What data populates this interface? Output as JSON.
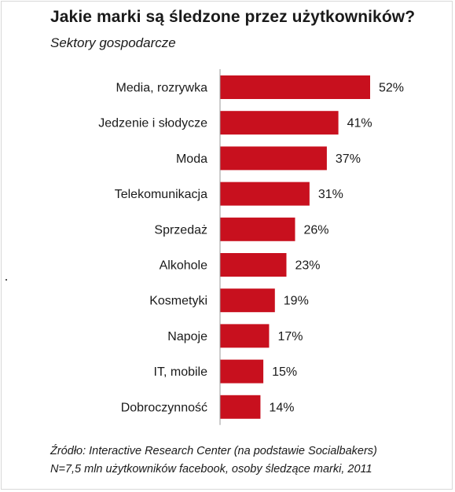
{
  "header": {
    "title": "Jakie marki są śledzone przez użytkowników?",
    "subtitle": "Sektory gospodarcze"
  },
  "footer": {
    "source": "Źródło: Interactive Research Center (na podstawie Socialbakers)",
    "note": "N=7,5 mln użytkowników facebook, osoby śledzące marki, 2011"
  },
  "colors": {
    "bar": "#c8101e"
  },
  "chart_data": {
    "type": "bar",
    "orientation": "horizontal",
    "title": "Jakie marki są śledzone przez użytkowników?",
    "subtitle": "Sektory gospodarcze",
    "categories": [
      "Media, rozrywka",
      "Jedzenie i słodycze",
      "Moda",
      "Telekomunikacja",
      "Sprzedaż",
      "Alkohole",
      "Kosmetyki",
      "Napoje",
      "IT, mobile",
      "Dobroczynność"
    ],
    "values": [
      52,
      41,
      37,
      31,
      26,
      23,
      19,
      17,
      15,
      14
    ],
    "data_labels": [
      "52%",
      "41%",
      "37%",
      "31%",
      "26%",
      "23%",
      "19%",
      "17%",
      "15%",
      "14%"
    ],
    "unit": "%",
    "xlim": [
      0,
      52
    ],
    "grid": false,
    "legend": "none"
  }
}
